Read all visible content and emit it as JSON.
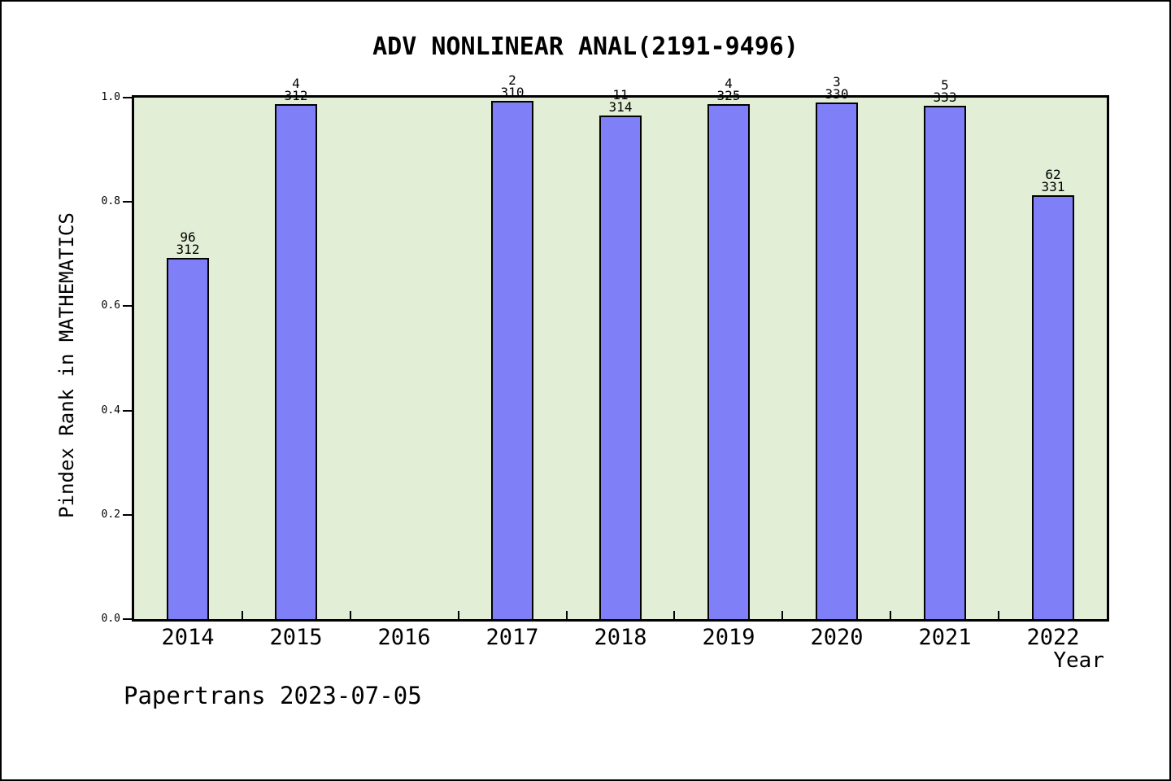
{
  "footer": {
    "text": "Papertrans 2023-07-05"
  },
  "chart_data": {
    "type": "bar",
    "title": "ADV NONLINEAR ANAL(2191-9496)",
    "xlabel": "Year",
    "ylabel": "Pindex Rank in MATHEMATICS",
    "categories": [
      "2014",
      "2015",
      "2016",
      "2017",
      "2018",
      "2019",
      "2020",
      "2021",
      "2022"
    ],
    "values": [
      0.6923,
      0.9872,
      null,
      0.9935,
      0.965,
      0.9877,
      0.9909,
      0.985,
      0.8127
    ],
    "bar_labels": [
      {
        "rank": "96",
        "total": "312"
      },
      {
        "rank": "4",
        "total": "312"
      },
      null,
      {
        "rank": "2",
        "total": "310"
      },
      {
        "rank": "11",
        "total": "314"
      },
      {
        "rank": "4",
        "total": "325"
      },
      {
        "rank": "3",
        "total": "330"
      },
      {
        "rank": "5",
        "total": "333"
      },
      {
        "rank": "62",
        "total": "331"
      }
    ],
    "ylim": [
      0,
      1
    ],
    "yticks": [
      "0.0",
      "0.2",
      "0.4",
      "0.6",
      "0.8",
      "1.0"
    ],
    "grid": false,
    "legend": null,
    "colors": {
      "bar_fill": "#7f7ff8",
      "bar_edge": "#000000",
      "plot_background": "#e2eed6",
      "figure_background": "#ffffff"
    }
  }
}
